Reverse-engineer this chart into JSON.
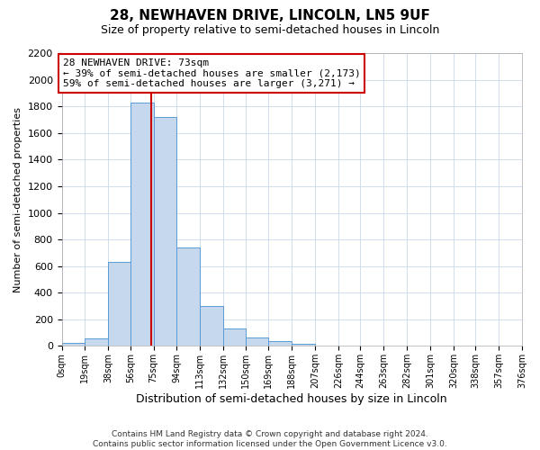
{
  "title": "28, NEWHAVEN DRIVE, LINCOLN, LN5 9UF",
  "subtitle": "Size of property relative to semi-detached houses in Lincoln",
  "xlabel": "Distribution of semi-detached houses by size in Lincoln",
  "ylabel": "Number of semi-detached properties",
  "bin_edges": [
    0,
    19,
    38,
    56,
    75,
    94,
    113,
    132,
    150,
    169,
    188,
    207,
    226,
    244,
    263,
    282,
    301,
    320,
    338,
    357,
    376
  ],
  "bin_counts": [
    20,
    60,
    630,
    1830,
    1720,
    740,
    300,
    130,
    65,
    40,
    15,
    5,
    5,
    2,
    2,
    2,
    2,
    1,
    1,
    1
  ],
  "bar_color": "#c5d8ed",
  "bar_edge_color": "#5b9bd5",
  "property_size": 73,
  "vline_color": "#cc0000",
  "annotation_line1": "28 NEWHAVEN DRIVE: 73sqm",
  "annotation_line2": "← 39% of semi-detached houses are smaller (2,173)",
  "annotation_line3": "59% of semi-detached houses are larger (3,271) →",
  "annotation_box_color": "#ffffff",
  "annotation_box_edge_color": "#cc0000",
  "ylim": [
    0,
    2200
  ],
  "yticks": [
    0,
    200,
    400,
    600,
    800,
    1000,
    1200,
    1400,
    1600,
    1800,
    2000,
    2200
  ],
  "x_tick_labels": [
    "0sqm",
    "19sqm",
    "38sqm",
    "56sqm",
    "75sqm",
    "94sqm",
    "113sqm",
    "132sqm",
    "150sqm",
    "169sqm",
    "188sqm",
    "207sqm",
    "226sqm",
    "244sqm",
    "263sqm",
    "282sqm",
    "301sqm",
    "320sqm",
    "338sqm",
    "357sqm",
    "376sqm"
  ],
  "footer_line1": "Contains HM Land Registry data © Crown copyright and database right 2024.",
  "footer_line2": "Contains public sector information licensed under the Open Government Licence v3.0.",
  "background_color": "#ffffff",
  "grid_color": "#c8d8ea",
  "fig_width": 6.0,
  "fig_height": 5.0,
  "dpi": 100
}
